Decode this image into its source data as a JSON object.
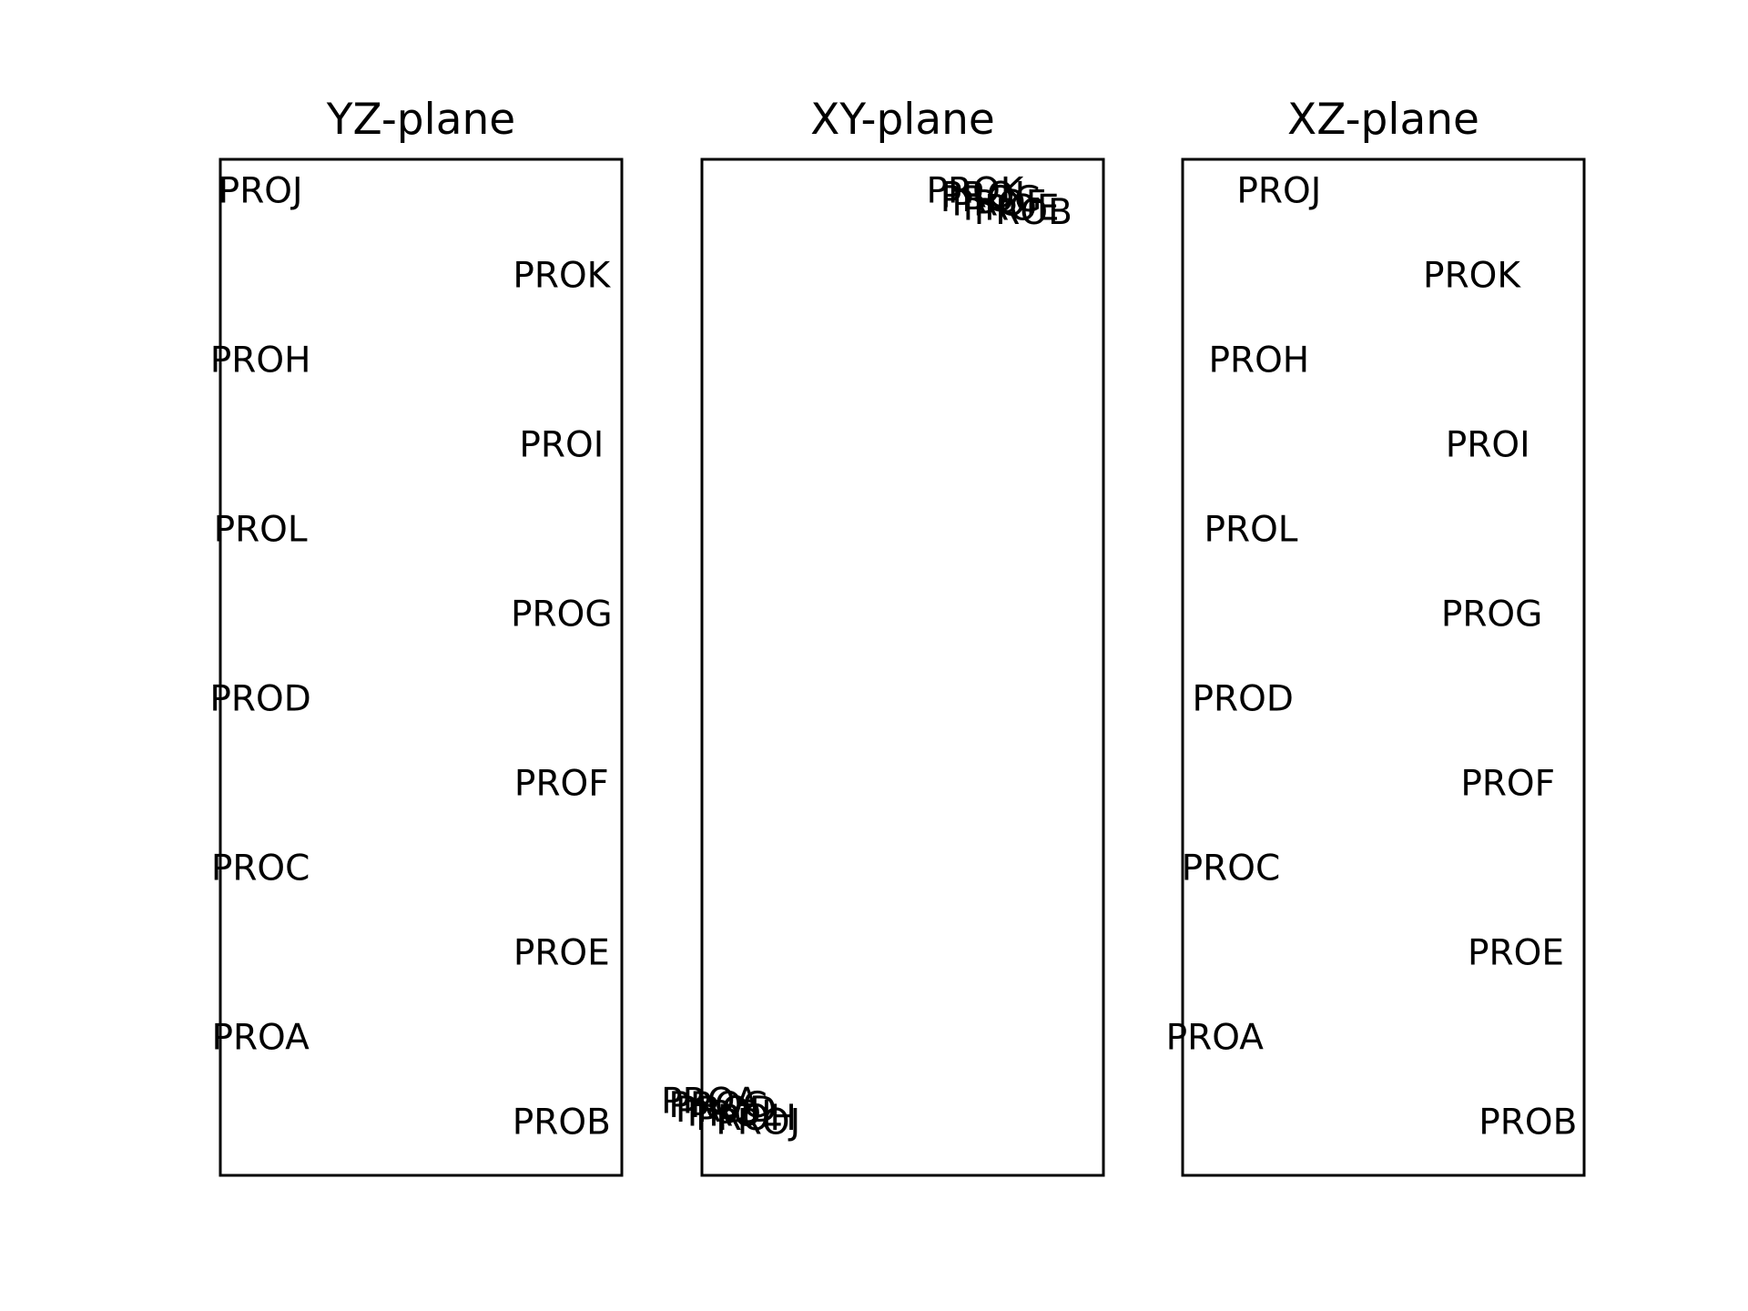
{
  "chart_data": [
    {
      "type": "scatter",
      "title": "YZ-plane",
      "points": [
        {
          "label": "PROJ",
          "x": 0.1,
          "y": 10.6
        },
        {
          "label": "PROK",
          "x": 0.85,
          "y": 9.6
        },
        {
          "label": "PROH",
          "x": 0.1,
          "y": 8.6
        },
        {
          "label": "PROI",
          "x": 0.85,
          "y": 7.6
        },
        {
          "label": "PROL",
          "x": 0.1,
          "y": 6.6
        },
        {
          "label": "PROG",
          "x": 0.85,
          "y": 5.6
        },
        {
          "label": "PROD",
          "x": 0.1,
          "y": 4.6
        },
        {
          "label": "PROF",
          "x": 0.85,
          "y": 3.6
        },
        {
          "label": "PROC",
          "x": 0.1,
          "y": 2.6
        },
        {
          "label": "PROE",
          "x": 0.85,
          "y": 1.6
        },
        {
          "label": "PROA",
          "x": 0.1,
          "y": 0.6
        },
        {
          "label": "PROB",
          "x": 0.85,
          "y": -0.4
        }
      ]
    },
    {
      "type": "scatter",
      "title": "XY-plane",
      "points": [
        {
          "label": "PROK",
          "x": 0.68,
          "y": 10.6
        },
        {
          "label": "PROI",
          "x": 0.7,
          "y": 10.55
        },
        {
          "label": "PROG",
          "x": 0.72,
          "y": 10.5
        },
        {
          "label": "PROF",
          "x": 0.74,
          "y": 10.45
        },
        {
          "label": "PROE",
          "x": 0.77,
          "y": 10.4
        },
        {
          "label": "PROB",
          "x": 0.8,
          "y": 10.35
        },
        {
          "label": "PROA",
          "x": 0.02,
          "y": -0.15
        },
        {
          "label": "PROC",
          "x": 0.04,
          "y": -0.2
        },
        {
          "label": "PROD",
          "x": 0.06,
          "y": -0.25
        },
        {
          "label": "PROL",
          "x": 0.08,
          "y": -0.3
        },
        {
          "label": "PROH",
          "x": 0.11,
          "y": -0.35
        },
        {
          "label": "PROJ",
          "x": 0.14,
          "y": -0.4
        }
      ]
    },
    {
      "type": "scatter",
      "title": "XZ-plane",
      "points": [
        {
          "label": "PROJ",
          "x": 0.24,
          "y": 10.6
        },
        {
          "label": "PROK",
          "x": 0.72,
          "y": 9.6
        },
        {
          "label": "PROH",
          "x": 0.19,
          "y": 8.6
        },
        {
          "label": "PROI",
          "x": 0.76,
          "y": 7.6
        },
        {
          "label": "PROL",
          "x": 0.17,
          "y": 6.6
        },
        {
          "label": "PROG",
          "x": 0.77,
          "y": 5.6
        },
        {
          "label": "PROD",
          "x": 0.15,
          "y": 4.6
        },
        {
          "label": "PROF",
          "x": 0.81,
          "y": 3.6
        },
        {
          "label": "PROC",
          "x": 0.12,
          "y": 2.6
        },
        {
          "label": "PROE",
          "x": 0.83,
          "y": 1.6
        },
        {
          "label": "PROA",
          "x": 0.08,
          "y": 0.6
        },
        {
          "label": "PROB",
          "x": 0.86,
          "y": -0.4
        }
      ]
    }
  ],
  "axes": {
    "xlim": [
      0,
      1
    ],
    "ylim": [
      -1,
      11
    ],
    "grid": false,
    "ticks": false
  }
}
